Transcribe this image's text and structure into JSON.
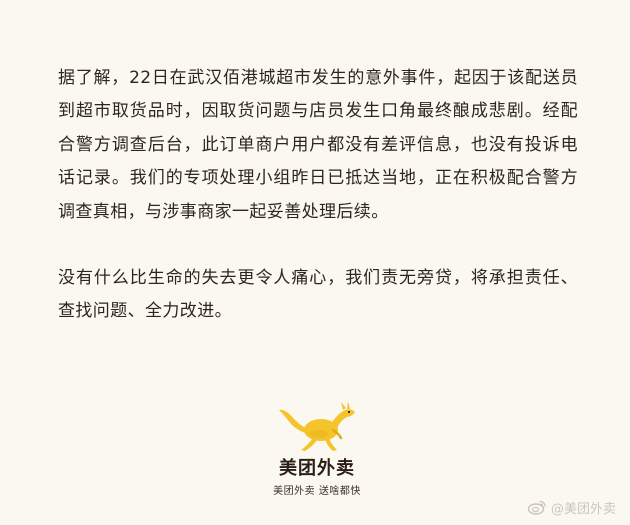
{
  "statement": {
    "paragraph_1": "据了解，22日在武汉佰港城超市发生的意外事件，起因于该配送员到超市取货品时，因取货问题与店员发生口角最终酿成悲剧。经配合警方调查后台，此订单商户用户都没有差评信息，也没有投诉电话记录。我们的专项处理小组昨日已抵达当地，正在积极配合警方调查真相，与涉事商家一起妥善处理后续。",
    "paragraph_2": "没有什么比生命的失去更令人痛心，我们责无旁贷，将承担责任、查找问题、全力改进。"
  },
  "logo": {
    "icon": "kangaroo-icon",
    "name": "美团外卖",
    "slogan": "美团外卖 送啥都快",
    "brand_color": "#f5c42a"
  },
  "watermark": {
    "icon": "weibo-icon",
    "text": "@美团外卖"
  },
  "colors": {
    "background": "#fbf7f1",
    "text": "#2d2620",
    "watermark": "#c9c4bd"
  }
}
